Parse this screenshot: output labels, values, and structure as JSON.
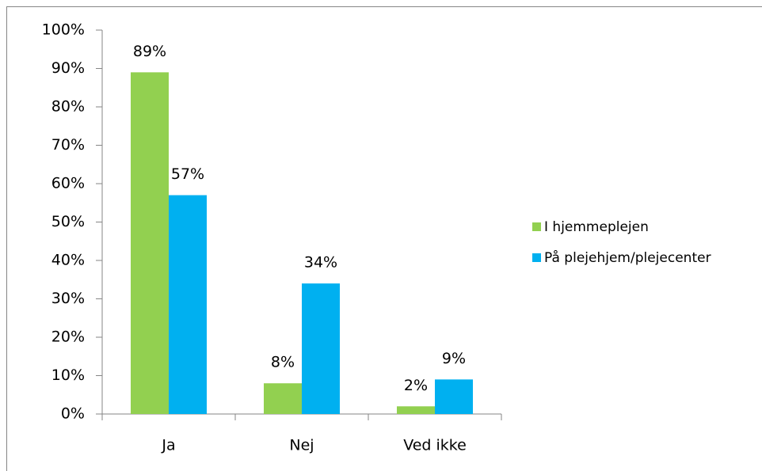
{
  "chart_data": {
    "type": "bar",
    "categories": [
      "Ja",
      "Nej",
      "Ved ikke"
    ],
    "series": [
      {
        "name": "I hjemmeplejen",
        "color": "#92d050",
        "values": [
          89,
          8,
          2
        ],
        "value_labels": [
          "89%",
          "8%",
          "2%"
        ]
      },
      {
        "name": "På plejehjem/plejecenter",
        "color": "#00b0f0",
        "values": [
          57,
          34,
          9
        ],
        "value_labels": [
          "57%",
          "34%",
          "9%"
        ]
      }
    ],
    "ylim": [
      0,
      100
    ],
    "yticks": [
      {
        "value": 0,
        "label": "0%"
      },
      {
        "value": 10,
        "label": "10%"
      },
      {
        "value": 20,
        "label": "20%"
      },
      {
        "value": 30,
        "label": "30%"
      },
      {
        "value": 40,
        "label": "40%"
      },
      {
        "value": 50,
        "label": "50%"
      },
      {
        "value": 60,
        "label": "60%"
      },
      {
        "value": 70,
        "label": "70%"
      },
      {
        "value": 80,
        "label": "80%"
      },
      {
        "value": 90,
        "label": "90%"
      },
      {
        "value": 100,
        "label": "100%"
      }
    ],
    "grid": false,
    "legend": "right"
  }
}
